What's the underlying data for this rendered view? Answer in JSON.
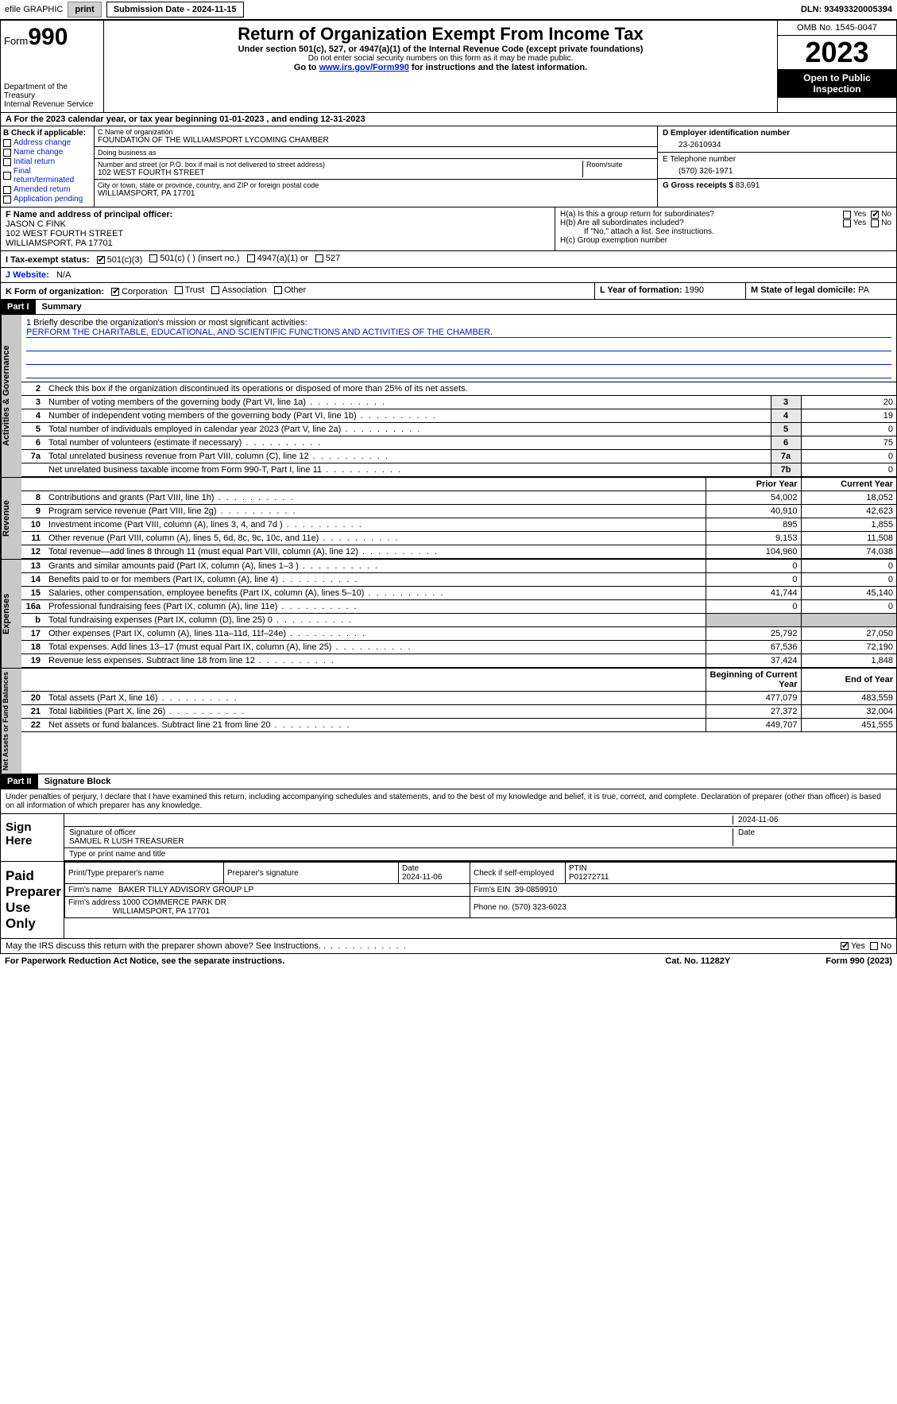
{
  "topbar": {
    "efile_label": "efile GRAPHIC",
    "print_btn": "print",
    "submission": "Submission Date - 2024-11-15",
    "dln": "DLN: 93493320005394"
  },
  "header": {
    "form_prefix": "Form",
    "form_number": "990",
    "dept": "Department of the Treasury",
    "irs": "Internal Revenue Service",
    "title": "Return of Organization Exempt From Income Tax",
    "subtitle": "Under section 501(c), 527, or 4947(a)(1) of the Internal Revenue Code (except private foundations)",
    "ssn_note": "Do not enter social security numbers on this form as it may be made public.",
    "goto_prefix": "Go to ",
    "goto_link": "www.irs.gov/Form990",
    "goto_suffix": " for instructions and the latest information.",
    "omb": "OMB No. 1545-0047",
    "year": "2023",
    "open_pub": "Open to Public Inspection"
  },
  "row_a": "A  For the 2023 calendar year, or tax year beginning 01-01-2023    , and ending 12-31-2023",
  "box_b": {
    "title": "B Check if applicable:",
    "items": [
      "Address change",
      "Name change",
      "Initial return",
      "Final return/terminated",
      "Amended return",
      "Application pending"
    ]
  },
  "box_c": {
    "name_lbl": "C Name of organization",
    "name": "FOUNDATION OF THE WILLIAMSPORT LYCOMING CHAMBER",
    "dba_lbl": "Doing business as",
    "addr_lbl": "Number and street (or P.O. box if mail is not delivered to street address)",
    "room_lbl": "Room/suite",
    "addr": "102 WEST FOURTH STREET",
    "city_lbl": "City or town, state or province, country, and ZIP or foreign postal code",
    "city": "WILLIAMSPORT, PA  17701"
  },
  "box_d": {
    "lbl": "D Employer identification number",
    "val": "23-2610934"
  },
  "box_e": {
    "lbl": "E Telephone number",
    "val": "(570) 326-1971"
  },
  "box_g": {
    "lbl": "G Gross receipts $",
    "val": "83,691"
  },
  "box_f": {
    "lbl": "F  Name and address of principal officer:",
    "name": "JASON C FINK",
    "addr1": "102 WEST FOURTH STREET",
    "addr2": "WILLIAMSPORT, PA  17701"
  },
  "box_h": {
    "ha": "H(a)  Is this a group return for subordinates?",
    "hb": "H(b)  Are all subordinates included?",
    "hb_note": "If \"No,\" attach a list. See instructions.",
    "hc": "H(c)  Group exemption number",
    "yes": "Yes",
    "no": "No"
  },
  "row_i": {
    "lbl": "I    Tax-exempt status:",
    "opts": [
      "501(c)(3)",
      "501(c) (  ) (insert no.)",
      "4947(a)(1) or",
      "527"
    ]
  },
  "row_j": {
    "lbl": "J    Website:",
    "val": "N/A"
  },
  "row_k": {
    "lbl": "K Form of organization:",
    "opts": [
      "Corporation",
      "Trust",
      "Association",
      "Other"
    ]
  },
  "row_l": {
    "lbl": "L Year of formation:",
    "val": "1990"
  },
  "row_m": {
    "lbl": "M State of legal domicile:",
    "val": "PA"
  },
  "part1": {
    "hdr": "Part I",
    "title": "Summary"
  },
  "mission": {
    "lbl": "1   Briefly describe the organization's mission or most significant activities:",
    "text": "PERFORM THE CHARITABLE, EDUCATIONAL, AND SCIENTIFIC FUNCTIONS AND ACTIVITIES OF THE CHAMBER."
  },
  "governance": {
    "tab": "Activities & Governance",
    "line2": "Check this box       if the organization discontinued its operations or disposed of more than 25% of its net assets.",
    "rows": [
      {
        "n": "3",
        "label": "Number of voting members of the governing body (Part VI, line 1a)",
        "box": "3",
        "val": "20"
      },
      {
        "n": "4",
        "label": "Number of independent voting members of the governing body (Part VI, line 1b)",
        "box": "4",
        "val": "19"
      },
      {
        "n": "5",
        "label": "Total number of individuals employed in calendar year 2023 (Part V, line 2a)",
        "box": "5",
        "val": "0"
      },
      {
        "n": "6",
        "label": "Total number of volunteers (estimate if necessary)",
        "box": "6",
        "val": "75"
      },
      {
        "n": "7a",
        "label": "Total unrelated business revenue from Part VIII, column (C), line 12",
        "box": "7a",
        "val": "0"
      },
      {
        "n": "",
        "label": "Net unrelated business taxable income from Form 990-T, Part I, line 11",
        "box": "7b",
        "val": "0"
      }
    ]
  },
  "revenue": {
    "tab": "Revenue",
    "hdr_prior": "Prior Year",
    "hdr_curr": "Current Year",
    "rows": [
      {
        "n": "8",
        "label": "Contributions and grants (Part VIII, line 1h)",
        "prior": "54,002",
        "curr": "18,052"
      },
      {
        "n": "9",
        "label": "Program service revenue (Part VIII, line 2g)",
        "prior": "40,910",
        "curr": "42,623"
      },
      {
        "n": "10",
        "label": "Investment income (Part VIII, column (A), lines 3, 4, and 7d )",
        "prior": "895",
        "curr": "1,855"
      },
      {
        "n": "11",
        "label": "Other revenue (Part VIII, column (A), lines 5, 6d, 8c, 9c, 10c, and 11e)",
        "prior": "9,153",
        "curr": "11,508"
      },
      {
        "n": "12",
        "label": "Total revenue—add lines 8 through 11 (must equal Part VIII, column (A), line 12)",
        "prior": "104,960",
        "curr": "74,038"
      }
    ]
  },
  "expenses": {
    "tab": "Expenses",
    "rows": [
      {
        "n": "13",
        "label": "Grants and similar amounts paid (Part IX, column (A), lines 1–3 )",
        "prior": "0",
        "curr": "0"
      },
      {
        "n": "14",
        "label": "Benefits paid to or for members (Part IX, column (A), line 4)",
        "prior": "0",
        "curr": "0"
      },
      {
        "n": "15",
        "label": "Salaries, other compensation, employee benefits (Part IX, column (A), lines 5–10)",
        "prior": "41,744",
        "curr": "45,140"
      },
      {
        "n": "16a",
        "label": "Professional fundraising fees (Part IX, column (A), line 11e)",
        "prior": "0",
        "curr": "0"
      },
      {
        "n": "b",
        "label": "Total fundraising expenses (Part IX, column (D), line 25) 0",
        "prior": "",
        "curr": "",
        "grey": true
      },
      {
        "n": "17",
        "label": "Other expenses (Part IX, column (A), lines 11a–11d, 11f–24e)",
        "prior": "25,792",
        "curr": "27,050"
      },
      {
        "n": "18",
        "label": "Total expenses. Add lines 13–17 (must equal Part IX, column (A), line 25)",
        "prior": "67,536",
        "curr": "72,190"
      },
      {
        "n": "19",
        "label": "Revenue less expenses. Subtract line 18 from line 12",
        "prior": "37,424",
        "curr": "1,848"
      }
    ]
  },
  "netassets": {
    "tab": "Net Assets or Fund Balances",
    "hdr_begin": "Beginning of Current Year",
    "hdr_end": "End of Year",
    "rows": [
      {
        "n": "20",
        "label": "Total assets (Part X, line 16)",
        "prior": "477,079",
        "curr": "483,559"
      },
      {
        "n": "21",
        "label": "Total liabilities (Part X, line 26)",
        "prior": "27,372",
        "curr": "32,004"
      },
      {
        "n": "22",
        "label": "Net assets or fund balances. Subtract line 21 from line 20",
        "prior": "449,707",
        "curr": "451,555"
      }
    ]
  },
  "part2": {
    "hdr": "Part II",
    "title": "Signature Block"
  },
  "perjury": "Under penalties of perjury, I declare that I have examined this return, including accompanying schedules and statements, and to the best of my knowledge and belief, it is true, correct, and complete. Declaration of preparer (other than officer) is based on all information of which preparer has any knowledge.",
  "sign": {
    "lbl": "Sign Here",
    "sig_lbl": "Signature of officer",
    "date_lbl": "Date",
    "date": "2024-11-06",
    "name": "SAMUEL R LUSH  TREASURER",
    "name_lbl": "Type or print name and title"
  },
  "preparer": {
    "lbl": "Paid Preparer Use Only",
    "print_lbl": "Print/Type preparer's name",
    "sig_lbl": "Preparer's signature",
    "date_lbl": "Date",
    "date": "2024-11-06",
    "check_lbl": "Check         if self-employed",
    "ptin_lbl": "PTIN",
    "ptin": "P01272711",
    "firm_name_lbl": "Firm's name",
    "firm_name": "BAKER TILLY ADVISORY GROUP LP",
    "firm_ein_lbl": "Firm's EIN",
    "firm_ein": "39-0859910",
    "firm_addr_lbl": "Firm's address",
    "firm_addr": "1000 COMMERCE PARK DR",
    "firm_city": "WILLIAMSPORT, PA  17701",
    "phone_lbl": "Phone no.",
    "phone": "(570) 323-6023"
  },
  "discuss": {
    "text": "May the IRS discuss this return with the preparer shown above? See Instructions.",
    "yes": "Yes",
    "no": "No"
  },
  "footer": {
    "left": "For Paperwork Reduction Act Notice, see the separate instructions.",
    "cat": "Cat. No. 11282Y",
    "right": "Form 990 (2023)"
  },
  "colors": {
    "link": "#0020c0",
    "grey_bg": "#c8c8c8",
    "light_grey": "#e8e8e8"
  }
}
